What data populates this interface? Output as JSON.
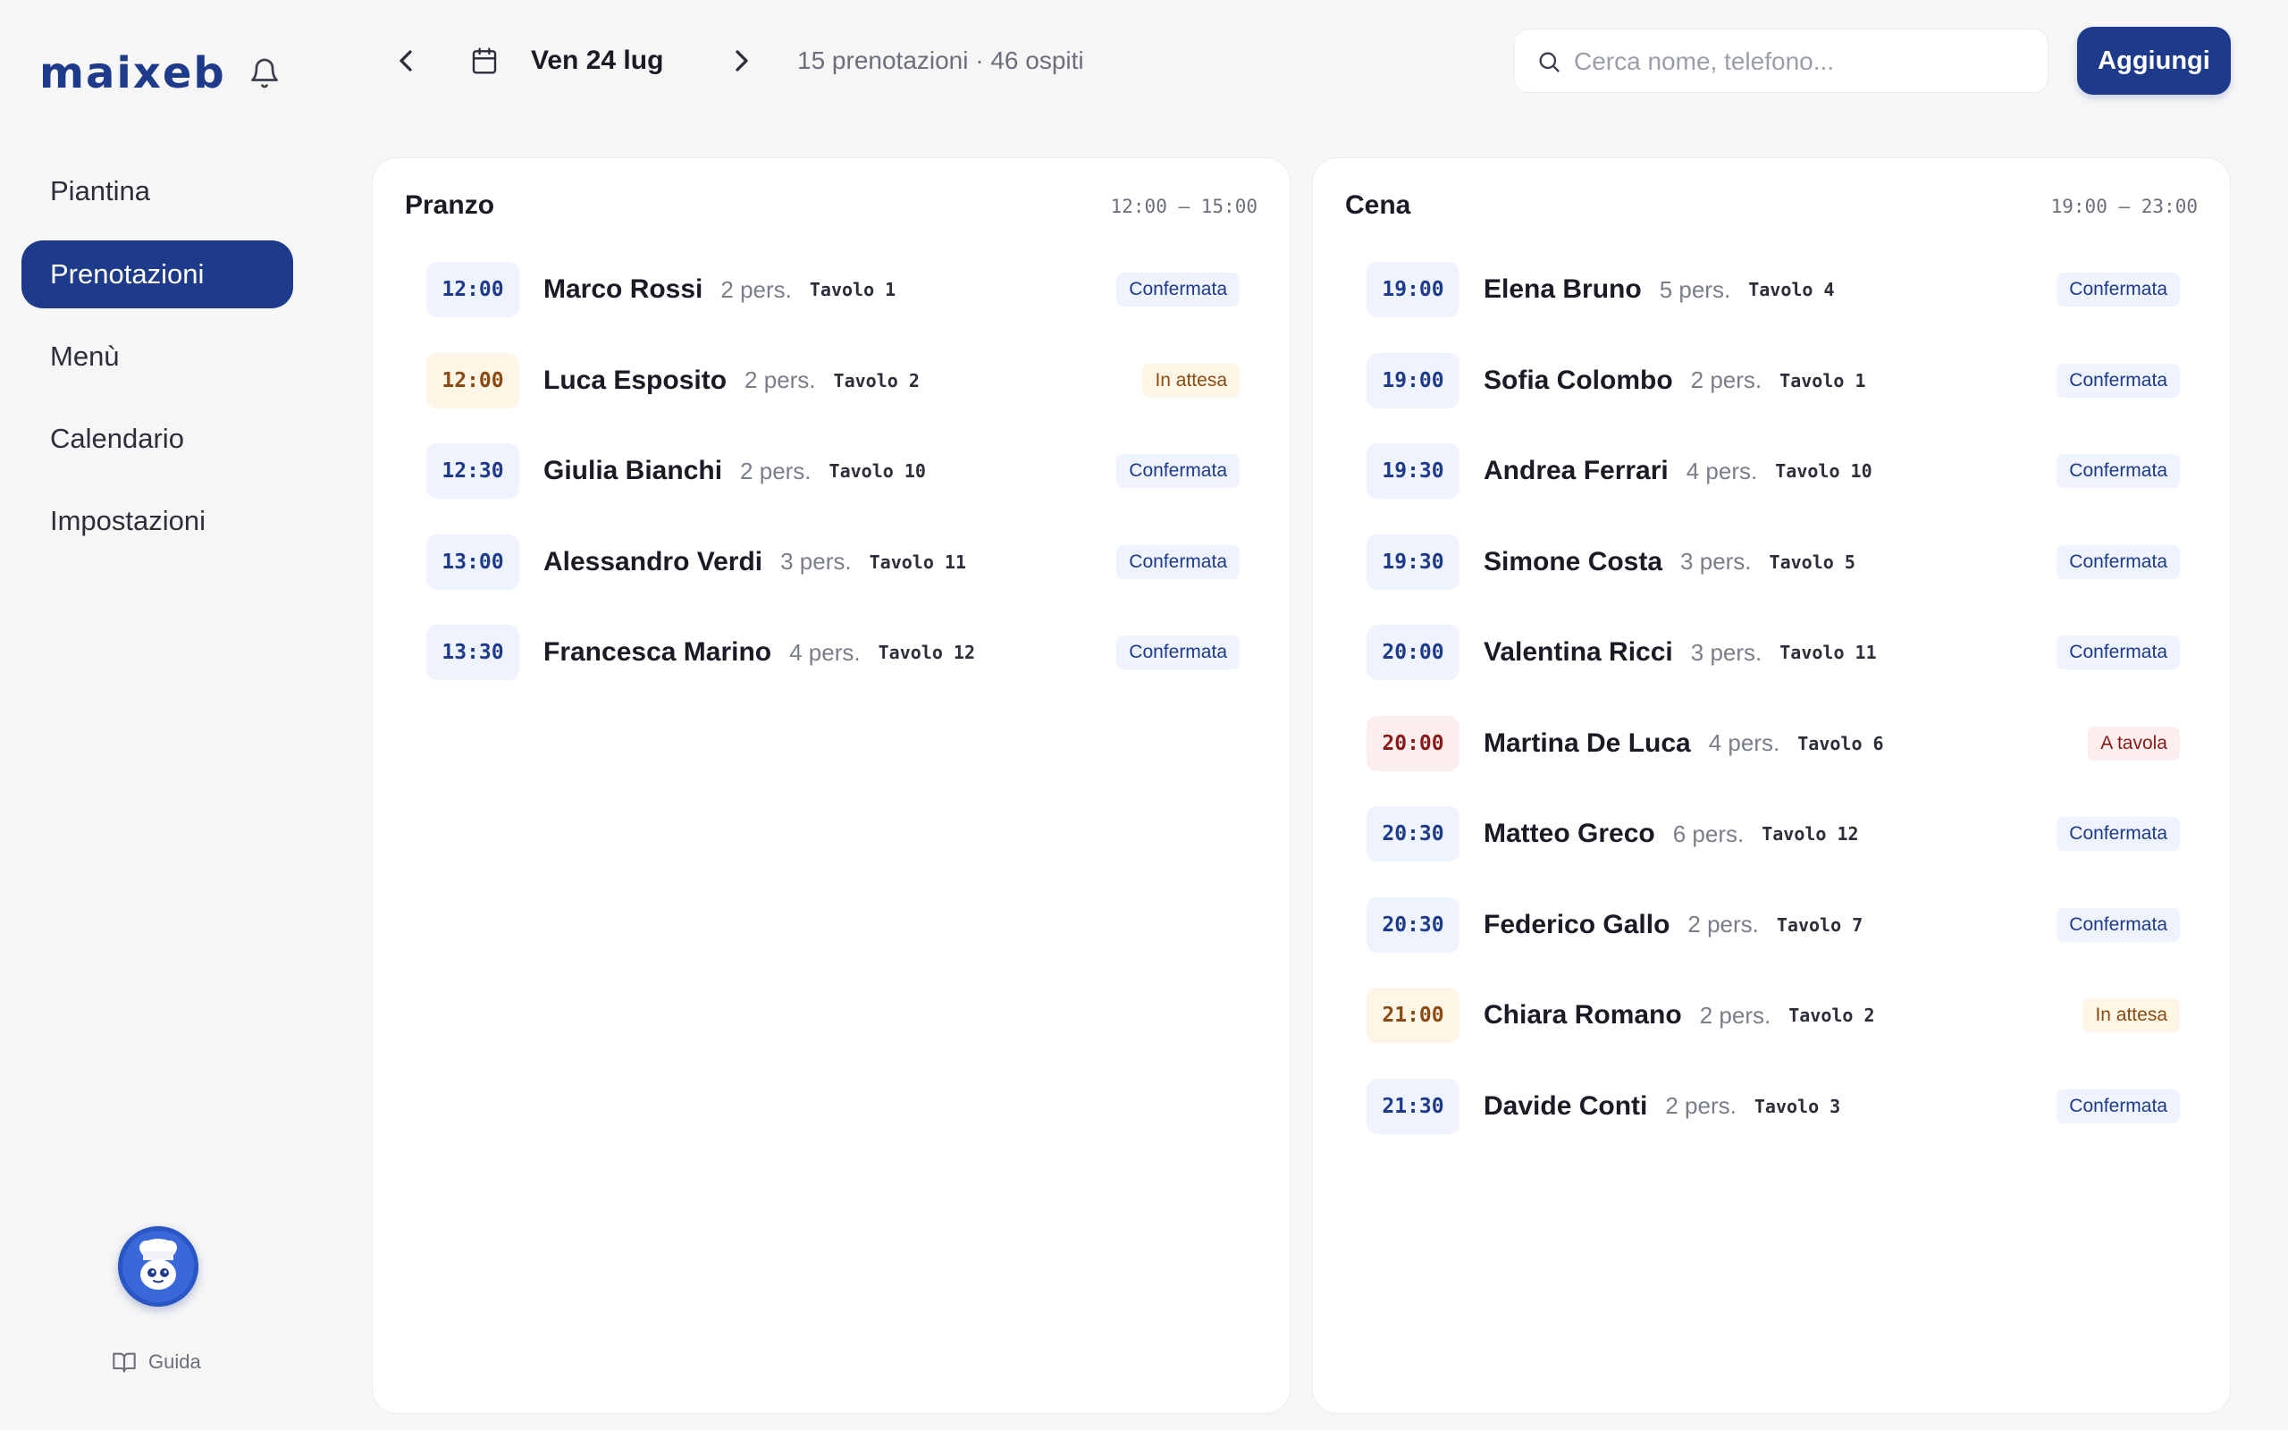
{
  "app": {
    "logo": "maixeb"
  },
  "sidebar": {
    "items": [
      {
        "label": "Piantina"
      },
      {
        "label": "Prenotazioni"
      },
      {
        "label": "Menù"
      },
      {
        "label": "Calendario"
      },
      {
        "label": "Impostazioni"
      }
    ],
    "active_item": "Prenotazioni",
    "guide_label": "Guida"
  },
  "header": {
    "date_label": "Ven 24 lug",
    "summary": "15 prenotazioni · 46 ospiti",
    "search_placeholder": "Cerca nome, telefono...",
    "add_button_label": "Aggiungi"
  },
  "colors": {
    "accent": "#1e3a8a",
    "status_confirmed_bg": "#eef3fd",
    "status_pending_bg": "#fdf6e6",
    "status_seated_bg": "#fdeeee"
  },
  "lunch": {
    "title": "Pranzo",
    "hours": "12:00 – 15:00",
    "rows": [
      {
        "time": "12:00",
        "name": "Marco Rossi",
        "guests": "2 pers.",
        "table": "Tavolo 1",
        "status": "Confermata",
        "state": "confirmed"
      },
      {
        "time": "12:00",
        "name": "Luca Esposito",
        "guests": "2 pers.",
        "table": "Tavolo 2",
        "status": "In attesa",
        "state": "pending"
      },
      {
        "time": "12:30",
        "name": "Giulia Bianchi",
        "guests": "2 pers.",
        "table": "Tavolo 10",
        "status": "Confermata",
        "state": "confirmed"
      },
      {
        "time": "13:00",
        "name": "Alessandro Verdi",
        "guests": "3 pers.",
        "table": "Tavolo 11",
        "status": "Confermata",
        "state": "confirmed"
      },
      {
        "time": "13:30",
        "name": "Francesca Marino",
        "guests": "4 pers.",
        "table": "Tavolo 12",
        "status": "Confermata",
        "state": "confirmed"
      }
    ]
  },
  "dinner": {
    "title": "Cena",
    "hours": "19:00 – 23:00",
    "rows": [
      {
        "time": "19:00",
        "name": "Elena Bruno",
        "guests": "5 pers.",
        "table": "Tavolo 4",
        "status": "Confermata",
        "state": "confirmed"
      },
      {
        "time": "19:00",
        "name": "Sofia Colombo",
        "guests": "2 pers.",
        "table": "Tavolo 1",
        "status": "Confermata",
        "state": "confirmed"
      },
      {
        "time": "19:30",
        "name": "Andrea Ferrari",
        "guests": "4 pers.",
        "table": "Tavolo 10",
        "status": "Confermata",
        "state": "confirmed"
      },
      {
        "time": "19:30",
        "name": "Simone Costa",
        "guests": "3 pers.",
        "table": "Tavolo 5",
        "status": "Confermata",
        "state": "confirmed"
      },
      {
        "time": "20:00",
        "name": "Valentina Ricci",
        "guests": "3 pers.",
        "table": "Tavolo 11",
        "status": "Confermata",
        "state": "confirmed"
      },
      {
        "time": "20:00",
        "name": "Martina De Luca",
        "guests": "4 pers.",
        "table": "Tavolo 6",
        "status": "A tavola",
        "state": "seated"
      },
      {
        "time": "20:30",
        "name": "Matteo Greco",
        "guests": "6 pers.",
        "table": "Tavolo 12",
        "status": "Confermata",
        "state": "confirmed"
      },
      {
        "time": "20:30",
        "name": "Federico Gallo",
        "guests": "2 pers.",
        "table": "Tavolo 7",
        "status": "Confermata",
        "state": "confirmed"
      },
      {
        "time": "21:00",
        "name": "Chiara Romano",
        "guests": "2 pers.",
        "table": "Tavolo 2",
        "status": "In attesa",
        "state": "pending"
      },
      {
        "time": "21:30",
        "name": "Davide Conti",
        "guests": "2 pers.",
        "table": "Tavolo 3",
        "status": "Confermata",
        "state": "confirmed"
      }
    ]
  }
}
